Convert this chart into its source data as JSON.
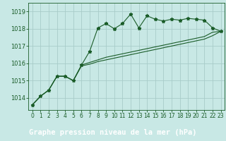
{
  "title": "Graphe pression niveau de la mer (hPa)",
  "bg_color": "#c8e8e5",
  "grid_color": "#a8ccc9",
  "line_color": "#1a5c28",
  "label_bg": "#2d6e3a",
  "label_fg": "#ffffff",
  "xlim": [
    -0.5,
    23.5
  ],
  "ylim": [
    1013.3,
    1019.5
  ],
  "yticks": [
    1014,
    1015,
    1016,
    1017,
    1018,
    1019
  ],
  "xticks": [
    0,
    1,
    2,
    3,
    4,
    5,
    6,
    7,
    8,
    9,
    10,
    11,
    12,
    13,
    14,
    15,
    16,
    17,
    18,
    19,
    20,
    21,
    22,
    23
  ],
  "series": [
    [
      1013.6,
      1014.1,
      1014.45,
      1015.25,
      1015.25,
      1015.0,
      1015.9,
      1016.7,
      1018.05,
      1018.3,
      1018.0,
      1018.3,
      1018.85,
      1018.05,
      1018.75,
      1018.55,
      1018.45,
      1018.55,
      1018.5,
      1018.6,
      1018.55,
      1018.5,
      1018.05,
      1017.85
    ],
    [
      1013.6,
      1014.1,
      1014.45,
      1015.25,
      1015.25,
      1015.0,
      1015.9,
      1016.05,
      1016.2,
      1016.35,
      1016.45,
      1016.55,
      1016.65,
      1016.75,
      1016.85,
      1016.95,
      1017.05,
      1017.15,
      1017.25,
      1017.35,
      1017.45,
      1017.55,
      1017.8,
      1017.85
    ],
    [
      1013.6,
      1014.1,
      1014.45,
      1015.25,
      1015.25,
      1015.0,
      1015.85,
      1015.95,
      1016.1,
      1016.2,
      1016.3,
      1016.4,
      1016.5,
      1016.6,
      1016.7,
      1016.8,
      1016.9,
      1017.0,
      1017.1,
      1017.2,
      1017.3,
      1017.4,
      1017.6,
      1017.85
    ]
  ],
  "title_fontsize": 7.5,
  "tick_fontsize": 5.5,
  "ytick_fontsize": 6.0
}
